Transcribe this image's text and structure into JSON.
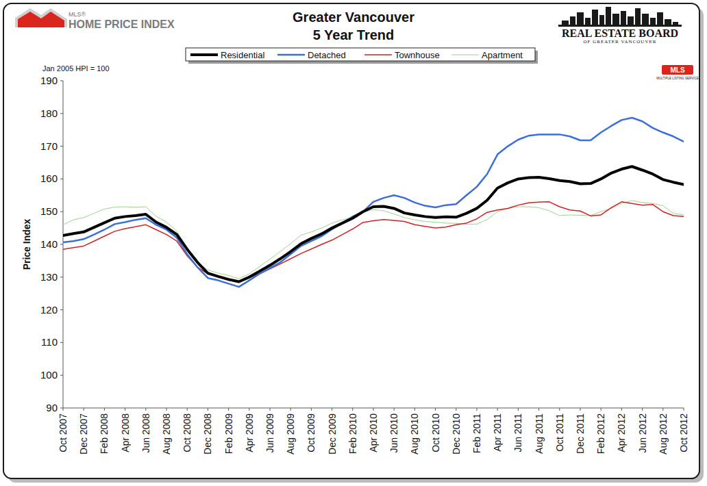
{
  "chart_data": {
    "type": "line",
    "title": "Greater Vancouver",
    "subtitle": "5 Year Trend",
    "y_label": "Price Index",
    "note": "Jan 2005 HPI = 100",
    "logo_left": [
      "MLS®",
      "HOME PRICE INDEX"
    ],
    "logo_right": [
      "REAL ESTATE BOARD",
      "OF GREATER VANCOUVER"
    ],
    "badge": [
      "MLS",
      "MULTIPLE LISTING SERVICE"
    ],
    "legend": "top",
    "grid": false,
    "ylim": [
      90,
      190
    ],
    "yticks": [
      90,
      100,
      110,
      120,
      130,
      140,
      150,
      160,
      170,
      180,
      190
    ],
    "categories": [
      "Oct 2007",
      null,
      "Dec 2007",
      null,
      "Feb 2008",
      null,
      "Apr 2008",
      null,
      "Jun 2008",
      null,
      "Aug 2008",
      null,
      "Oct 2008",
      null,
      "Dec 2008",
      null,
      "Feb 2009",
      null,
      "Apr 2009",
      null,
      "Jun 2009",
      null,
      "Aug 2009",
      null,
      "Oct 2009",
      null,
      "Dec 2009",
      null,
      "Feb 2010",
      null,
      "Apr 2010",
      null,
      "Jun 2010",
      null,
      "Aug 2010",
      null,
      "Oct 2010",
      null,
      "Dec 2010",
      null,
      "Feb 2011",
      null,
      "Apr 2011",
      null,
      "Jun 2011",
      null,
      "Aug 2011",
      null,
      "Oct 2011",
      null,
      "Dec 2011",
      null,
      "Feb 2012",
      null,
      "Apr 2012",
      null,
      "Jun 2012",
      null,
      "Aug 2012",
      null,
      "Oct 2012"
    ],
    "series": [
      {
        "name": "Residential",
        "color": "#000000",
        "values": [
          142.7,
          143.3,
          143.8,
          145.2,
          146.6,
          148.0,
          148.5,
          148.8,
          149.2,
          146.8,
          145.2,
          143.0,
          138.5,
          134.5,
          131.2,
          130.2,
          129.3,
          128.6,
          130.0,
          131.8,
          133.6,
          135.6,
          137.8,
          140.2,
          141.8,
          143.2,
          145.0,
          146.5,
          148.0,
          150.0,
          151.5,
          151.6,
          151.0,
          149.6,
          149.0,
          148.5,
          148.2,
          148.4,
          148.3,
          149.5,
          151.0,
          153.5,
          157.2,
          158.8,
          160.0,
          160.4,
          160.5,
          160.1,
          159.5,
          159.2,
          158.5,
          158.6,
          160.0,
          161.8,
          163.0,
          163.8,
          162.7,
          161.5,
          159.8,
          159.0,
          158.3
        ]
      },
      {
        "name": "Detached",
        "color": "#3a6fd8",
        "values": [
          140.6,
          141.0,
          141.6,
          143.0,
          144.5,
          146.2,
          146.8,
          147.5,
          148.0,
          146.0,
          144.5,
          142.0,
          137.0,
          133.0,
          129.7,
          129.0,
          128.0,
          127.0,
          129.0,
          131.0,
          132.8,
          134.5,
          137.0,
          139.5,
          141.0,
          142.5,
          144.6,
          146.5,
          148.5,
          150.0,
          153.0,
          154.2,
          155.0,
          154.2,
          152.8,
          151.8,
          151.3,
          152.0,
          152.3,
          155.0,
          157.6,
          161.5,
          167.5,
          170.0,
          172.0,
          173.2,
          173.6,
          173.6,
          173.6,
          173.0,
          171.8,
          171.8,
          174.2,
          176.2,
          178.0,
          178.7,
          177.6,
          175.6,
          174.2,
          173.0,
          171.4
        ]
      },
      {
        "name": "Townhouse",
        "color": "#d42020",
        "values": [
          138.5,
          139.0,
          139.5,
          141.0,
          142.5,
          144.0,
          144.8,
          145.4,
          146.0,
          144.5,
          143.0,
          141.0,
          136.5,
          133.0,
          131.0,
          130.0,
          129.0,
          128.4,
          129.8,
          131.0,
          132.5,
          134.0,
          135.6,
          137.2,
          138.6,
          140.0,
          141.3,
          143.0,
          144.7,
          146.7,
          147.2,
          147.6,
          147.3,
          147.0,
          146.0,
          145.5,
          145.0,
          145.3,
          146.0,
          146.5,
          147.8,
          149.8,
          150.5,
          151.0,
          152.0,
          152.7,
          152.9,
          153.0,
          151.5,
          150.5,
          150.2,
          148.7,
          149.0,
          151.2,
          153.0,
          152.5,
          152.0,
          152.2,
          150.0,
          148.8,
          148.5
        ]
      },
      {
        "name": "Apartment",
        "color": "#9fd08e",
        "values": [
          146.0,
          147.5,
          148.2,
          149.5,
          150.8,
          151.4,
          151.5,
          151.3,
          151.5,
          148.6,
          146.8,
          144.0,
          139.0,
          134.5,
          132.2,
          131.2,
          130.5,
          129.5,
          131.0,
          133.2,
          135.5,
          137.8,
          140.2,
          142.8,
          143.8,
          145.0,
          146.5,
          147.5,
          148.3,
          149.8,
          150.6,
          150.3,
          149.3,
          148.2,
          147.5,
          147.0,
          146.8,
          146.5,
          146.4,
          146.2,
          146.2,
          147.6,
          150.0,
          151.0,
          151.5,
          151.5,
          151.2,
          150.3,
          148.8,
          149.0,
          148.9,
          148.8,
          150.0,
          151.0,
          152.5,
          153.4,
          152.8,
          152.5,
          151.8,
          149.5,
          149.0
        ]
      }
    ]
  }
}
